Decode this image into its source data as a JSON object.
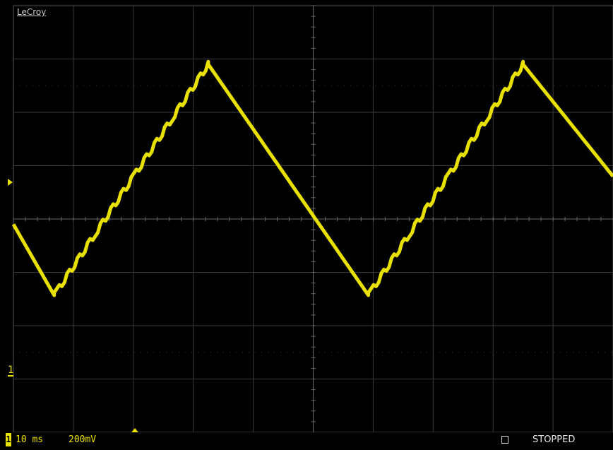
{
  "brand": "LeCroy",
  "channel": {
    "number": "1",
    "color": "#e8e000",
    "timebase": "10 ms",
    "volts_per_div": "200mV"
  },
  "acquisition_status": "STOPPED",
  "grid": {
    "divisions_x": 10,
    "divisions_y": 8,
    "color": "#3a3a3a"
  },
  "chart_data": {
    "type": "line",
    "title": "",
    "xlabel": "",
    "ylabel": "",
    "x_units": "ms",
    "y_units": "mV",
    "xlim": [
      0,
      100
    ],
    "ylim": [
      -800,
      800
    ],
    "series": [
      {
        "x": [
          0,
          6.8,
          32.5,
          59.2,
          85,
          100
        ],
        "values": [
          -20,
          -286,
          580,
          -286,
          580,
          160
        ]
      }
    ]
  }
}
